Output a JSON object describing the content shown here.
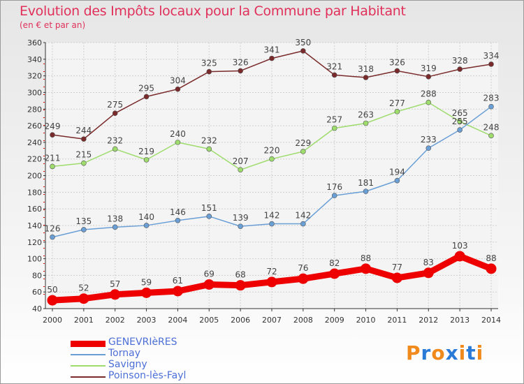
{
  "title": "Evolution des Impôts locaux pour la Commune par Habitant",
  "subtitle": "(en € et par an)",
  "legend": [
    {
      "label": "GENEVRIèRES",
      "color": "#ee0000"
    },
    {
      "label": "Tornay",
      "color": "#6a9fd6"
    },
    {
      "label": "Savigny",
      "color": "#9fdc6e"
    },
    {
      "label": "Poinson-lès-Fayl",
      "color": "#7a2a2a"
    }
  ],
  "logo": {
    "text": "Proxiti",
    "letters": [
      "P",
      "r",
      "o",
      "x",
      "i",
      "t",
      "i"
    ],
    "colors": [
      "#f08a1c",
      "#2a7ad8",
      "#f08a1c",
      "#2a7ad8",
      "#f08a1c",
      "#2a7ad8",
      "#f08a1c"
    ]
  },
  "chart_data": {
    "type": "line",
    "title": "Evolution des Impôts locaux pour la Commune par Habitant",
    "subtitle": "(en € et par an)",
    "x": [
      2000,
      2001,
      2002,
      2003,
      2004,
      2005,
      2006,
      2007,
      2008,
      2009,
      2010,
      2011,
      2012,
      2013,
      2014
    ],
    "ylim": [
      40,
      360
    ],
    "yticks": [
      40,
      60,
      80,
      100,
      120,
      140,
      160,
      180,
      200,
      220,
      240,
      260,
      280,
      300,
      320,
      340,
      360
    ],
    "grid": true,
    "legend_position": "bottom-left",
    "series": [
      {
        "name": "GENEVRIèRES",
        "color": "#ee0000",
        "values": [
          50,
          52,
          57,
          59,
          61,
          69,
          68,
          72,
          76,
          82,
          88,
          77,
          83,
          103,
          88
        ]
      },
      {
        "name": "Tornay",
        "color": "#6a9fd6",
        "values": [
          126,
          135,
          138,
          140,
          146,
          151,
          139,
          142,
          142,
          176,
          181,
          194,
          233,
          255,
          283
        ]
      },
      {
        "name": "Savigny",
        "color": "#9fdc6e",
        "values": [
          211,
          215,
          232,
          219,
          240,
          232,
          207,
          220,
          229,
          257,
          263,
          277,
          288,
          265,
          248
        ]
      },
      {
        "name": "Poinson-lès-Fayl",
        "color": "#7a2a2a",
        "values": [
          249,
          244,
          275,
          295,
          304,
          325,
          326,
          341,
          350,
          321,
          318,
          326,
          319,
          328,
          334
        ]
      }
    ],
    "point_labels": [
      {
        "series": "GENEVRIèRES",
        "values": [
          50,
          52,
          57,
          59,
          61,
          69,
          68,
          72,
          76,
          82,
          88,
          77,
          83,
          103,
          88
        ]
      },
      {
        "series": "Tornay",
        "values": [
          126,
          135,
          138,
          140,
          146,
          151,
          139,
          142,
          142,
          176,
          181,
          194,
          233,
          255,
          283
        ]
      },
      {
        "series": "Savigny",
        "values": [
          211,
          215,
          232,
          219,
          240,
          232,
          207,
          220,
          229,
          257,
          263,
          277,
          288,
          265,
          248
        ]
      },
      {
        "series": "Poinson-lès-Fayl",
        "values": [
          249,
          244,
          275,
          295,
          304,
          325,
          326,
          341,
          350,
          321,
          318,
          326,
          319,
          328,
          334
        ]
      }
    ]
  }
}
